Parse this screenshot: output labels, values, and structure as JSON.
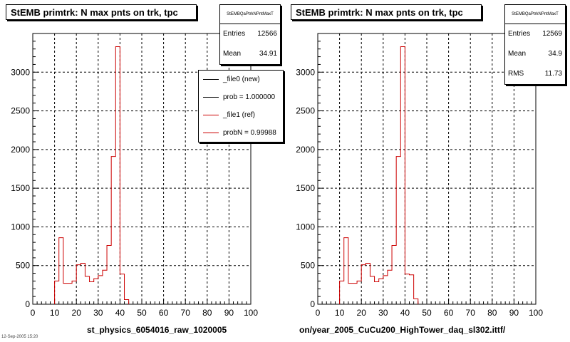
{
  "panels": [
    {
      "title": "StEMB primtrk: N max pnts on trk, tpc",
      "stats": {
        "name": "StEMBQaPtrkNPntMaxT",
        "rows": [
          {
            "label": "Entries",
            "value": "12566"
          },
          {
            "label": "Mean",
            "value": "34.91"
          }
        ]
      },
      "legend": [
        {
          "label": "_file0 (new)",
          "color": "#000000"
        },
        {
          "label": "prob = 1.000000",
          "color": "#000000"
        },
        {
          "label": "_file1 (ref)",
          "color": "#cc0000"
        },
        {
          "label": "probN = 0.99988",
          "color": "#cc0000"
        }
      ],
      "xlabel": "st_physics_6054016_raw_1020005"
    },
    {
      "title": "StEMB primtrk: N max pnts on trk, tpc",
      "stats": {
        "name": "StEMBQaPtrkNPntMaxT",
        "rows": [
          {
            "label": "Entries",
            "value": "12569"
          },
          {
            "label": "Mean",
            "value": "34.9"
          },
          {
            "label": "RMS",
            "value": "11.73"
          }
        ]
      },
      "legend": [],
      "xlabel": "on/year_2005_CuCu200_HighTower_daq_sl302.ittf/"
    }
  ],
  "corner_text": "12-Sep-2005 15:20",
  "chart_data": [
    {
      "type": "bar",
      "title": "StEMB primtrk: N max pnts on trk, tpc",
      "xlabel": "st_physics_6054016_raw_1020005",
      "ylabel": "",
      "xlim": [
        0,
        100
      ],
      "ylim": [
        0,
        3500
      ],
      "xticks": [
        0,
        10,
        20,
        30,
        40,
        50,
        60,
        70,
        80,
        90,
        100
      ],
      "yticks": [
        0,
        500,
        1000,
        1500,
        2000,
        2500,
        3000
      ],
      "grid": true,
      "legend_position": "top-right",
      "bin_width": 2,
      "bin_edges_start": 10,
      "series": [
        {
          "name": "_file1 (ref)",
          "color": "#cc0000",
          "values": [
            300,
            860,
            270,
            270,
            300,
            510,
            530,
            360,
            290,
            330,
            370,
            440,
            760,
            1910,
            3330,
            390,
            60
          ]
        }
      ]
    },
    {
      "type": "bar",
      "title": "StEMB primtrk: N max pnts on trk, tpc",
      "xlabel": "on/year_2005_CuCu200_HighTower_daq_sl302.ittf/",
      "ylabel": "",
      "xlim": [
        0,
        100
      ],
      "ylim": [
        0,
        3500
      ],
      "xticks": [
        0,
        10,
        20,
        30,
        40,
        50,
        60,
        70,
        80,
        90,
        100
      ],
      "yticks": [
        0,
        500,
        1000,
        1500,
        2000,
        2500,
        3000
      ],
      "grid": true,
      "bin_width": 2,
      "bin_edges_start": 10,
      "series": [
        {
          "name": "",
          "color": "#cc0000",
          "values": [
            300,
            860,
            270,
            270,
            300,
            510,
            530,
            360,
            290,
            330,
            370,
            440,
            760,
            1910,
            3330,
            390,
            380,
            70
          ]
        }
      ]
    }
  ]
}
